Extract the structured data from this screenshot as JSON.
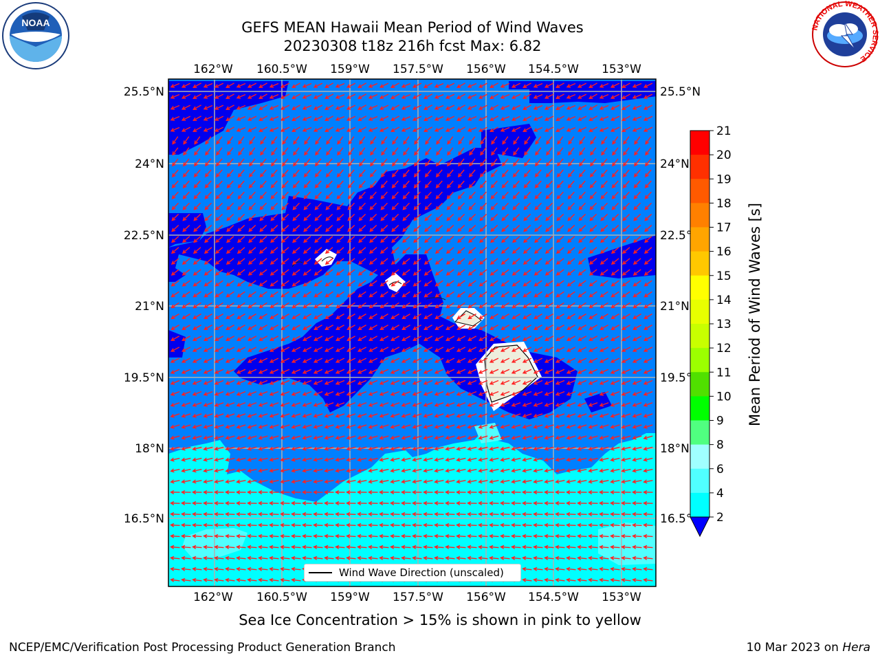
{
  "header": {
    "title_line1": "GEFS MEAN Hawaii Mean Period of Wind Waves",
    "title_line2": "20230308 t18z 216h fcst   Max: 6.82"
  },
  "logos": {
    "noaa_text": "NOAA",
    "nws_text": "NATIONAL WEATHER SERVICE"
  },
  "map": {
    "lon_ticks": [
      "162°W",
      "160.5°W",
      "159°W",
      "157.5°W",
      "156°W",
      "154.5°W",
      "153°W"
    ],
    "lat_ticks": [
      "25.5°N",
      "24°N",
      "22.5°N",
      "21°N",
      "19.5°N",
      "18°N",
      "16.5°N"
    ],
    "legend_label": "Wind Wave Direction (unscaled)",
    "colors": {
      "band_2_4": "#0080ff",
      "below_2": "#0000ee",
      "band_4_6": "#00ffff",
      "band_6_8": "#50ffff",
      "arrow": "#ff2020",
      "land": "#eeeedd"
    }
  },
  "colorbar": {
    "label": "Mean Period of Wind Waves [s]",
    "ticks": [
      "21",
      "20",
      "19",
      "18",
      "17",
      "16",
      "15",
      "14",
      "13",
      "12",
      "11",
      "10",
      "9",
      "8",
      "6",
      "4",
      "2"
    ],
    "colors": [
      "#ff0000",
      "#ff3000",
      "#ff5a00",
      "#ff8000",
      "#ffa500",
      "#ffc800",
      "#ffff00",
      "#e8ff00",
      "#c8ff00",
      "#9cff00",
      "#50e000",
      "#00ff00",
      "#50ff80",
      "#a0ffff",
      "#50ffff",
      "#00ffff",
      "#0080ff",
      "#0000ff"
    ]
  },
  "footer": {
    "note": "Sea Ice Concentration > 15% is shown in pink to yellow",
    "left": "NCEP/EMC/Verification Post Processing Product Generation Branch",
    "right_prefix": "10 Mar 2023 on ",
    "right_italic": "Hera"
  }
}
